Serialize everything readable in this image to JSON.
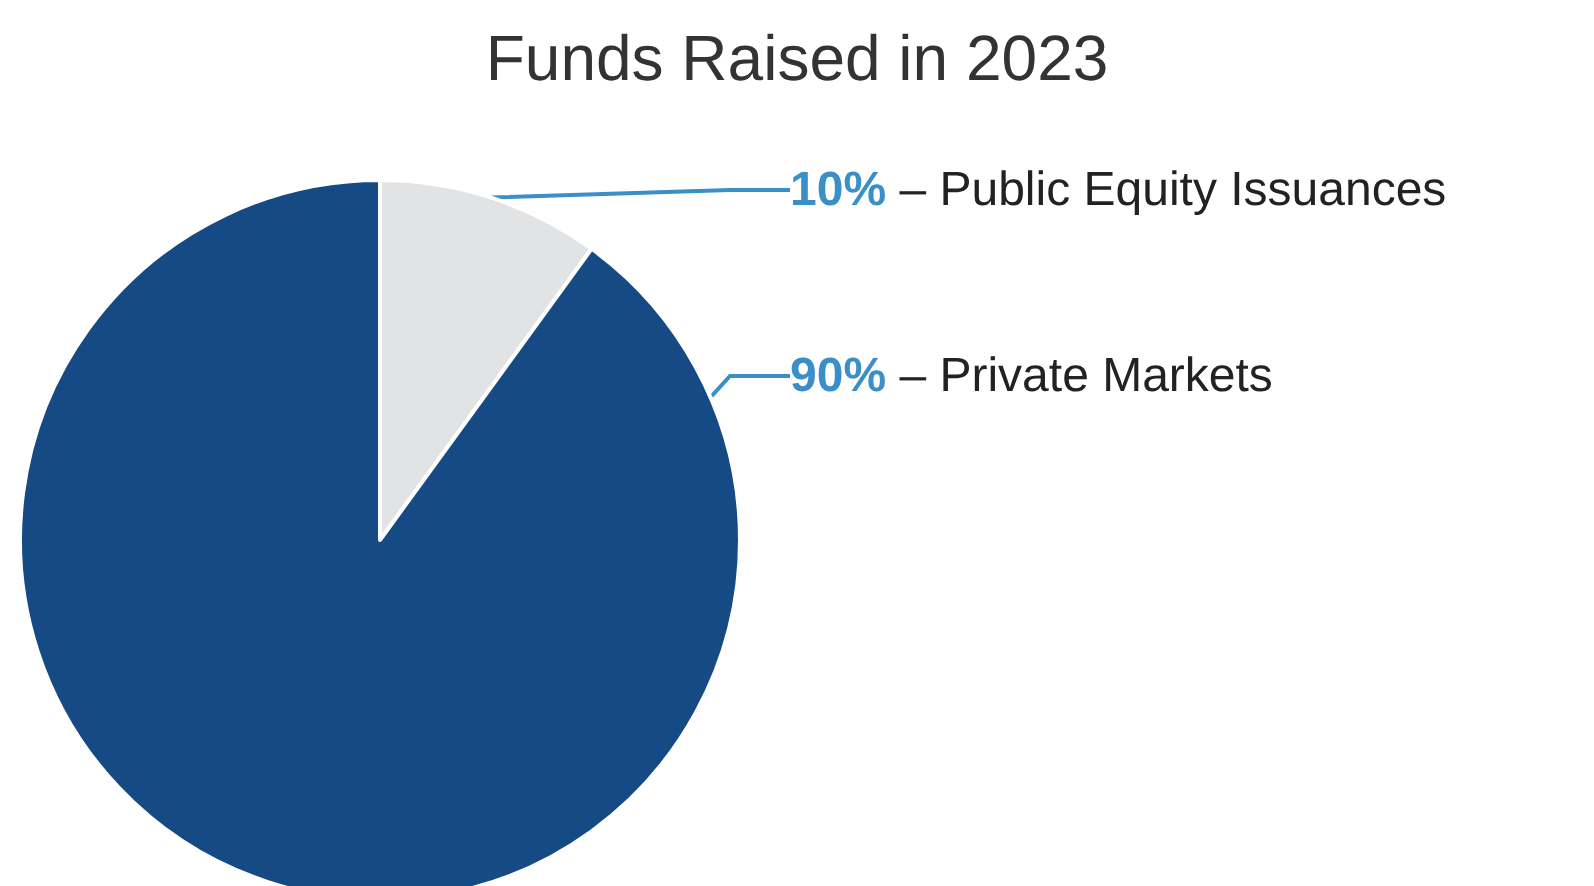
{
  "chart_data": {
    "type": "pie",
    "title": "Funds Raised in 2023",
    "categories": [
      "– Public Equity Issuances",
      "– Private Markets"
    ],
    "values": [
      10,
      90
    ],
    "value_labels": [
      "10%",
      "90%"
    ],
    "colors": [
      "#e2e3e5",
      "#154a85"
    ],
    "data_labels": true
  }
}
